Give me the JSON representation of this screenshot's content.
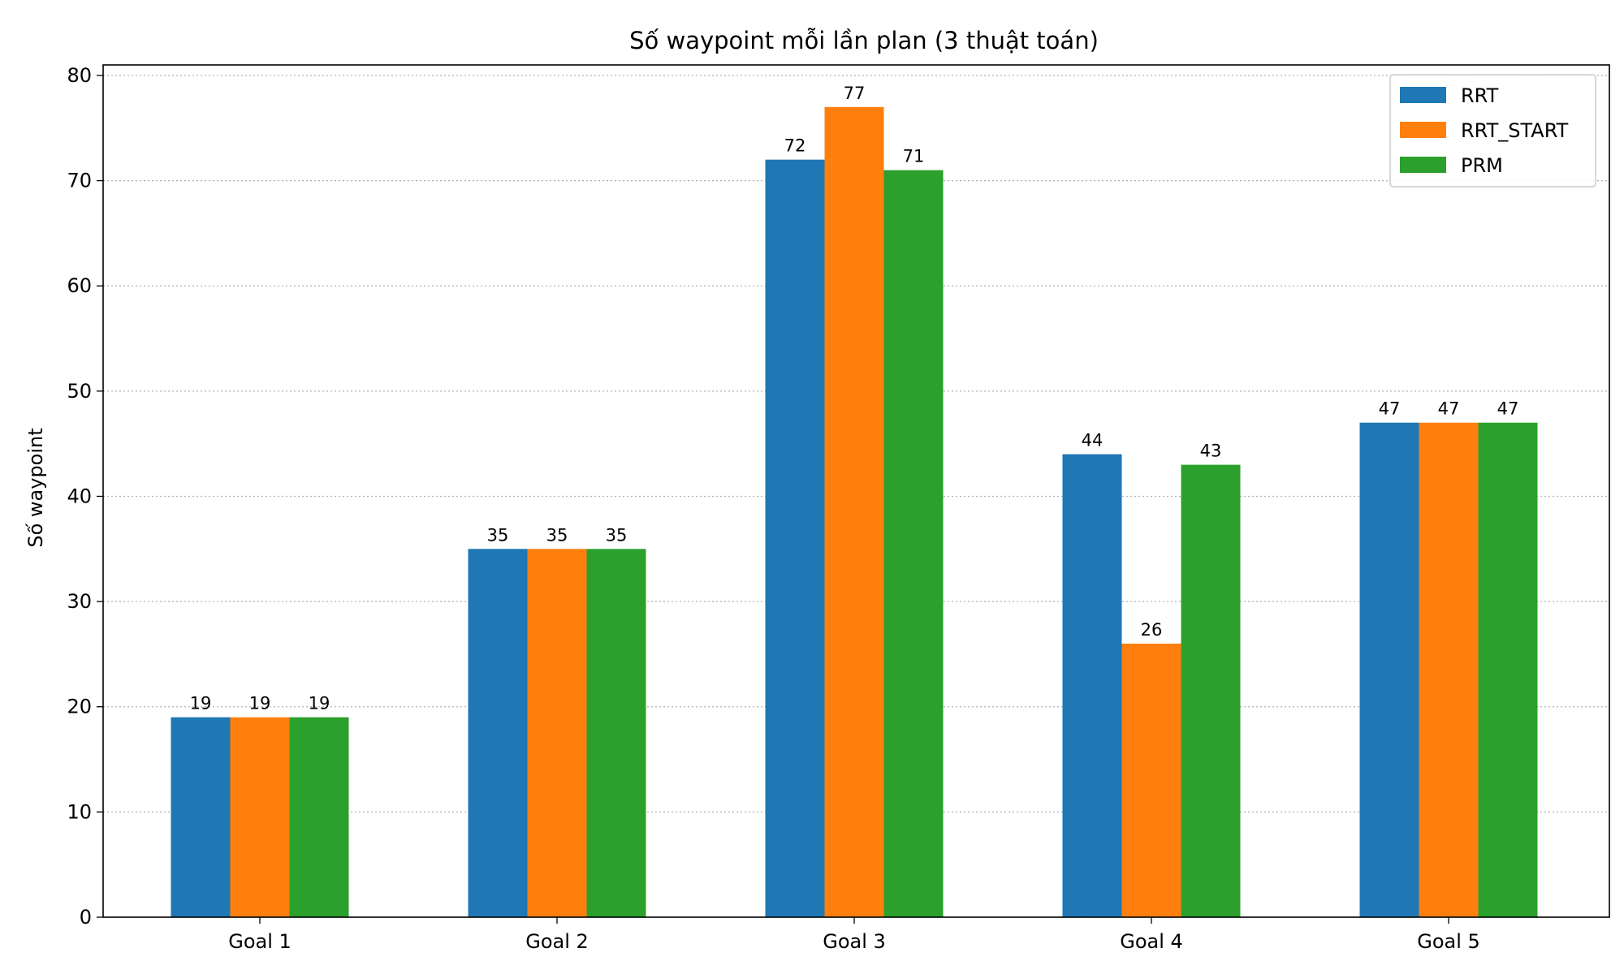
{
  "chart_data": {
    "type": "bar",
    "title": "Số waypoint mỗi lần plan (3 thuật toán)",
    "xlabel": "",
    "ylabel": "Số waypoint",
    "categories": [
      "Goal 1",
      "Goal 2",
      "Goal 3",
      "Goal 4",
      "Goal 5"
    ],
    "series": [
      {
        "name": "RRT",
        "color": "#1f77b4",
        "values": [
          19,
          35,
          72,
          44,
          47
        ]
      },
      {
        "name": "RRT_START",
        "color": "#ff7f0e",
        "values": [
          19,
          35,
          77,
          26,
          47
        ]
      },
      {
        "name": "PRM",
        "color": "#2ca02c",
        "values": [
          19,
          35,
          71,
          43,
          47
        ]
      }
    ],
    "ylim": [
      0,
      81
    ],
    "yticks": [
      0,
      10,
      20,
      30,
      40,
      50,
      60,
      70,
      80
    ],
    "grid": "y-dotted",
    "legend": "top-right",
    "data_labels": true
  }
}
